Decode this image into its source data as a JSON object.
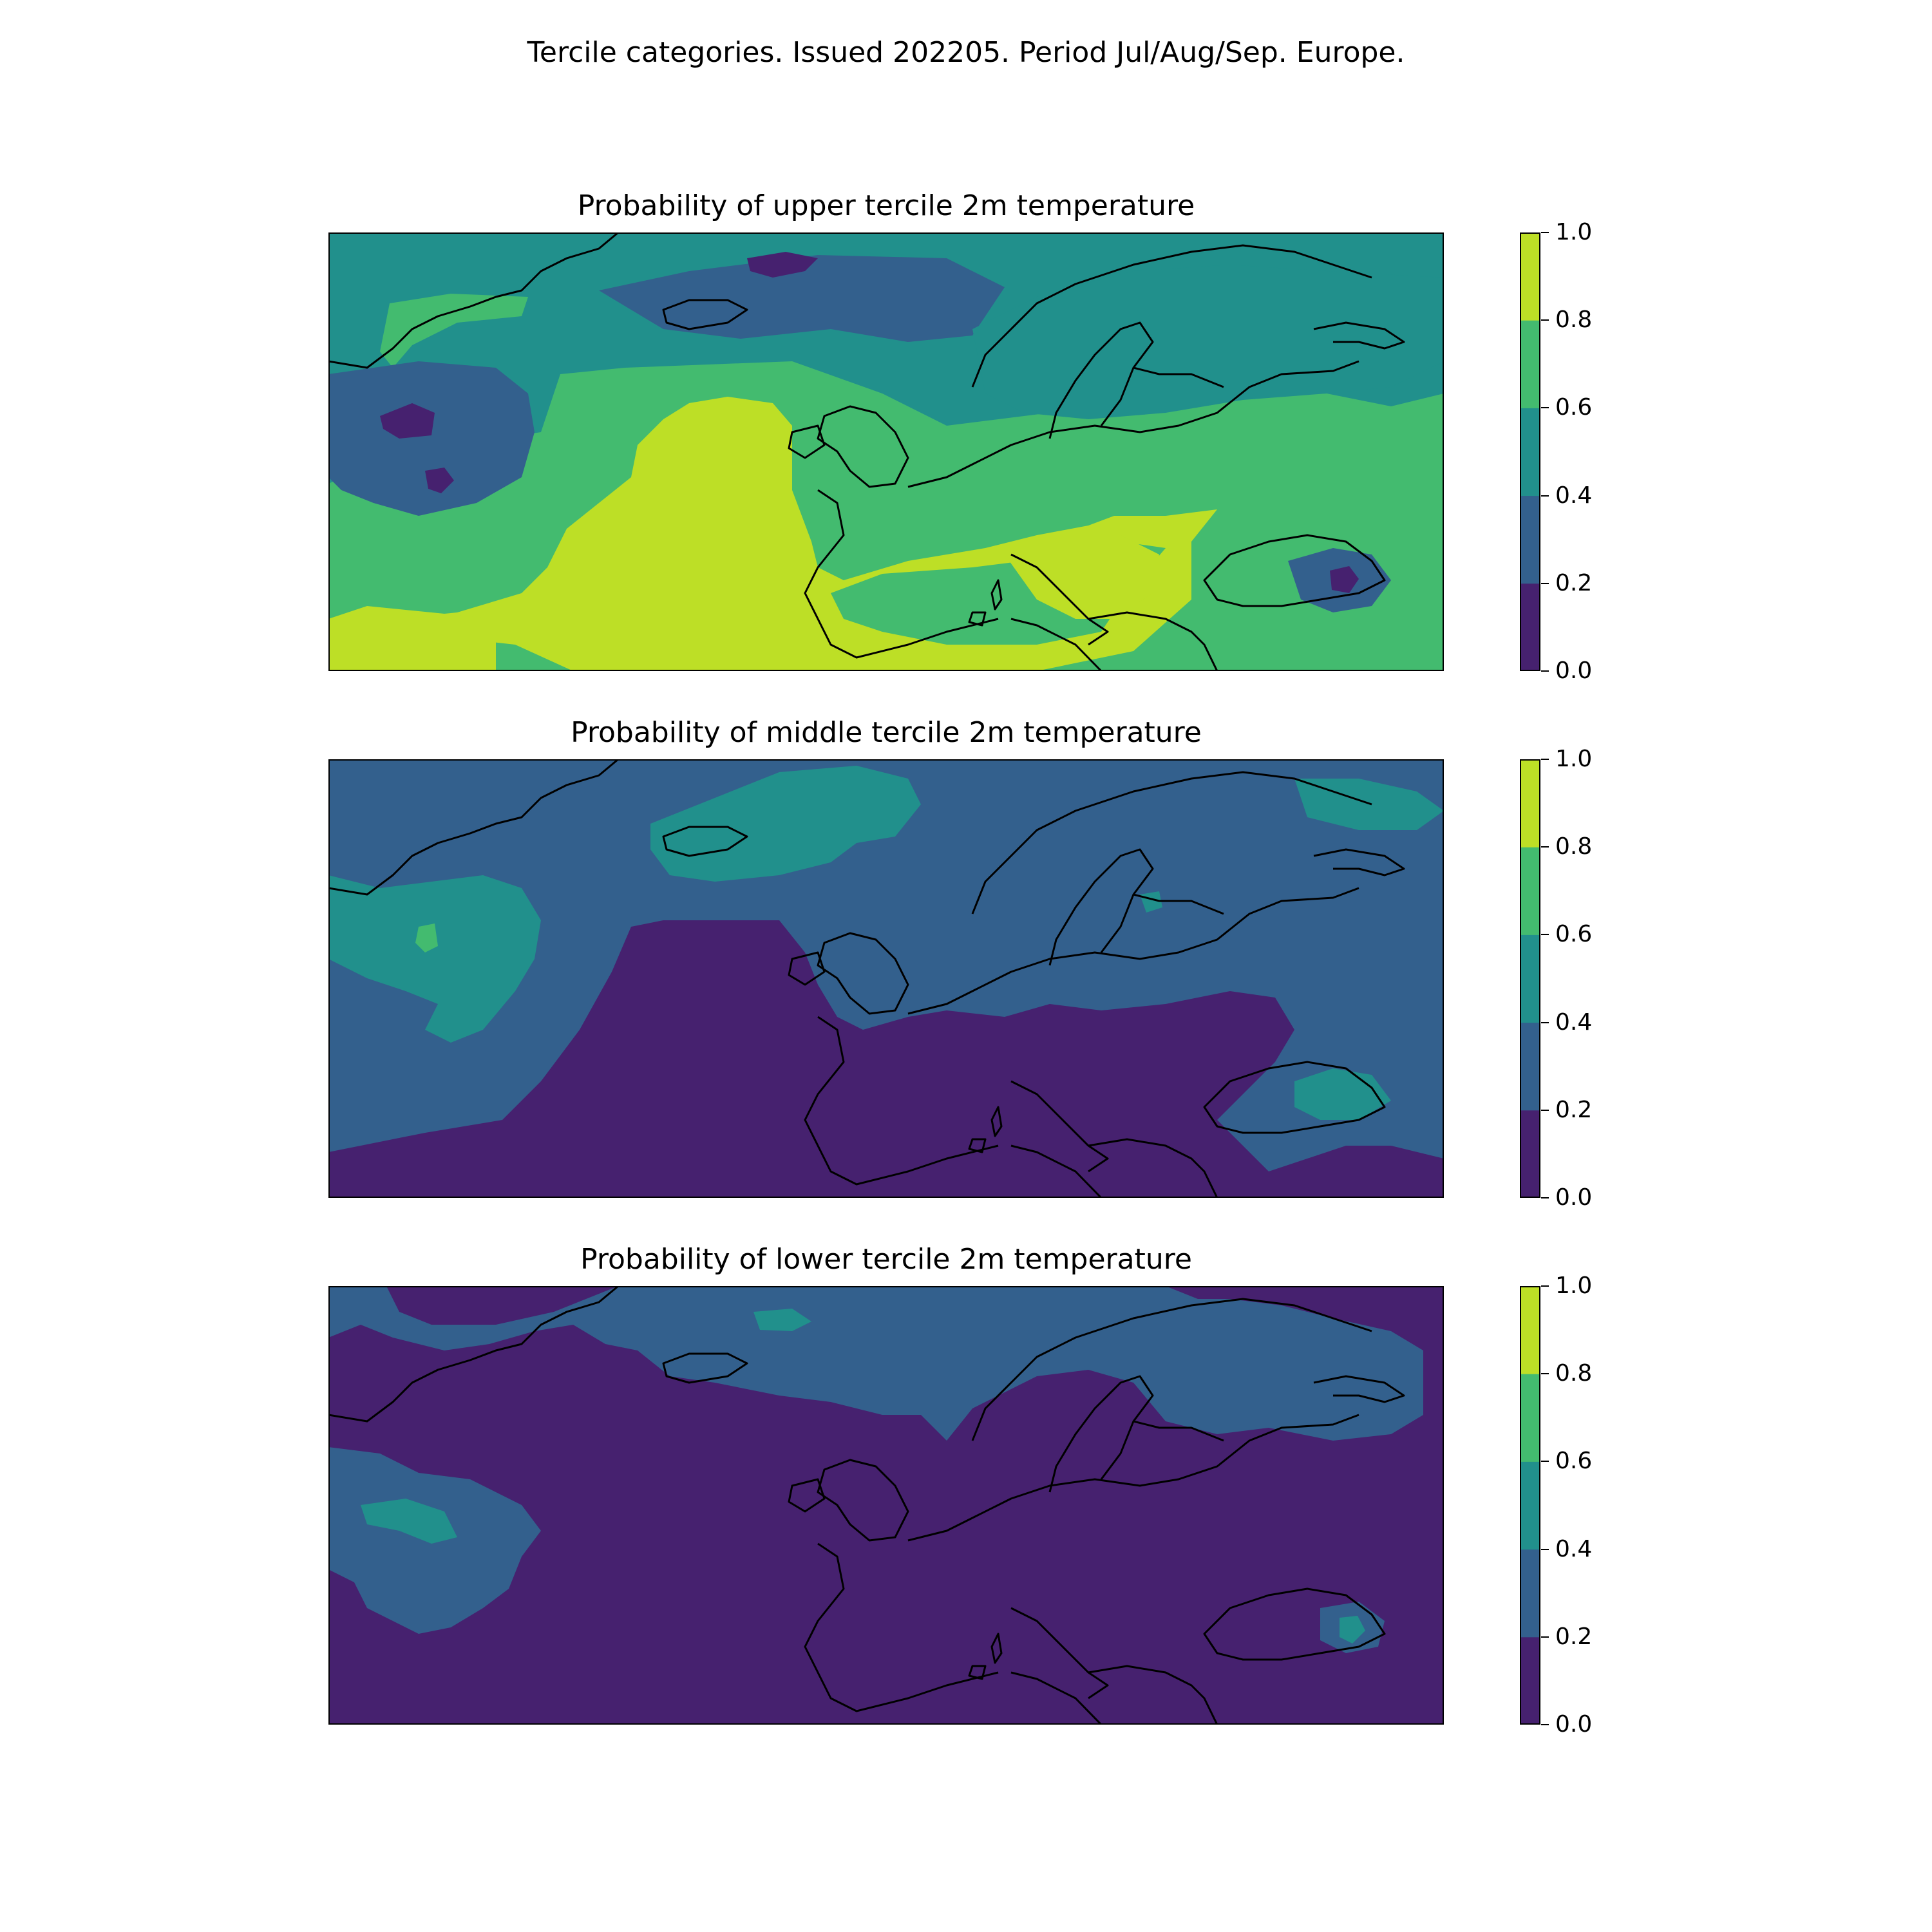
{
  "figure": {
    "title": "Tercile categories. Issued 202205. Period Jul/Aug/Sep. Europe."
  },
  "colorbar": {
    "levels": [
      0.0,
      0.2,
      0.4,
      0.6,
      0.8,
      1.0
    ],
    "tick_labels": [
      "1.0",
      "0.8",
      "0.6",
      "0.4",
      "0.2",
      "0.0"
    ],
    "colors": [
      "#46216f",
      "#33608d",
      "#21908c",
      "#43bb6f",
      "#bddf26"
    ]
  },
  "coastline_color": "#000000",
  "panels": [
    {
      "title": "Probability of upper tercile 2m temperature",
      "regions": {
        "background": 0.5,
        "iceland_band": 0.3,
        "mid_atlantic_band": 0.7,
        "west_atlantic_patch": 0.3,
        "west_atlantic_minimum": 0.1,
        "greenland_strip": 0.7,
        "subtropical_atlantic": 0.7,
        "iberia_atlantic_core": 0.9,
        "south_west_corner": 0.9,
        "continental_europe": 0.7,
        "mediterranean_balkans": 0.9,
        "scandinavia": 0.5,
        "norwegian_sea_minimum": 0.1,
        "caucasus_low": 0.3,
        "caucasus_minimum": 0.1
      }
    },
    {
      "title": "Probability of middle tercile 2m temperature",
      "regions": {
        "background": 0.3,
        "iceland_norwegian_sea": 0.5,
        "west_atlantic_patch": 0.5,
        "west_atlantic_spot": 0.7,
        "atlantic_iberia_low": 0.1,
        "southern_europe_low": 0.1,
        "barents_patch": 0.5,
        "black_sea_patch": 0.5,
        "baltic_spot": 0.5
      }
    },
    {
      "title": "Probability of lower tercile 2m temperature",
      "regions": {
        "background": 0.1,
        "northern_belt": 0.3,
        "iceland_spot": 0.5,
        "west_atlantic_patch": 0.3,
        "west_atlantic_spot": 0.5,
        "caucasus_patch": 0.3,
        "caucasus_spot": 0.5
      }
    }
  ]
}
